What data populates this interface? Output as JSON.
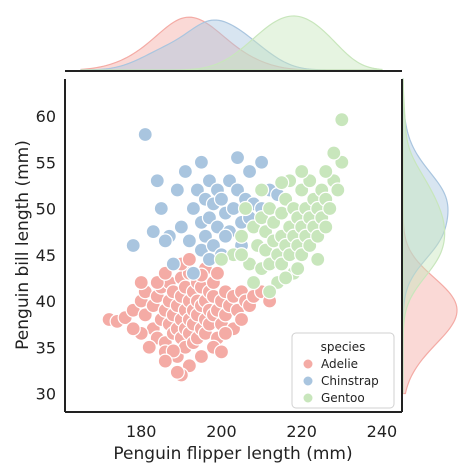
{
  "chart_data": {
    "type": "scatter",
    "xlabel": "Penguin flipper length (mm)",
    "ylabel": "Penguin bill length (mm)",
    "xlim": [
      161,
      245
    ],
    "ylim": [
      28,
      64
    ],
    "x_ticks": [
      180,
      200,
      220,
      240
    ],
    "y_ticks": [
      30,
      35,
      40,
      45,
      50,
      55,
      60
    ],
    "grid": false,
    "legend": {
      "title": "species",
      "placement": "bottom-right",
      "entries": [
        "Adelie",
        "Chinstrap",
        "Gentoo"
      ]
    },
    "marginals": {
      "top": "kde of flipper length by species",
      "right": "kde of bill length by species"
    },
    "series": [
      {
        "name": "Adelie",
        "color": "#f4aba5",
        "points": [
          [
            172,
            38
          ],
          [
            174,
            37.8
          ],
          [
            176,
            38.2
          ],
          [
            178,
            39
          ],
          [
            180,
            40
          ],
          [
            181,
            38.5
          ],
          [
            181,
            41
          ],
          [
            183,
            39.5
          ],
          [
            183,
            37
          ],
          [
            184,
            40.5
          ],
          [
            184,
            36
          ],
          [
            185,
            38
          ],
          [
            185,
            41.5
          ],
          [
            186,
            39
          ],
          [
            186,
            35.5
          ],
          [
            187,
            40
          ],
          [
            187,
            37.5
          ],
          [
            187,
            42
          ],
          [
            188,
            38.5
          ],
          [
            188,
            36.5
          ],
          [
            188,
            41
          ],
          [
            189,
            39.5
          ],
          [
            189,
            37
          ],
          [
            189,
            34
          ],
          [
            190,
            40.5
          ],
          [
            190,
            38
          ],
          [
            190,
            36
          ],
          [
            190,
            42.5
          ],
          [
            191,
            39
          ],
          [
            191,
            41.5
          ],
          [
            191,
            37
          ],
          [
            191,
            35
          ],
          [
            192,
            40
          ],
          [
            192,
            38
          ],
          [
            192,
            36.5
          ],
          [
            192,
            43
          ],
          [
            193,
            39
          ],
          [
            193,
            41
          ],
          [
            193,
            37.5
          ],
          [
            193,
            35.5
          ],
          [
            194,
            40
          ],
          [
            194,
            38.5
          ],
          [
            194,
            42
          ],
          [
            194,
            36
          ],
          [
            195,
            39.5
          ],
          [
            195,
            37
          ],
          [
            195,
            41.5
          ],
          [
            195,
            34
          ],
          [
            196,
            40
          ],
          [
            196,
            38
          ],
          [
            196,
            43.5
          ],
          [
            196,
            36.5
          ],
          [
            197,
            39
          ],
          [
            197,
            41
          ],
          [
            197,
            37.5
          ],
          [
            198,
            40.5
          ],
          [
            198,
            38.5
          ],
          [
            198,
            42
          ],
          [
            199,
            39
          ],
          [
            199,
            36
          ],
          [
            200,
            40
          ],
          [
            200,
            37.5
          ],
          [
            201,
            41
          ],
          [
            201,
            38.5
          ],
          [
            202,
            39.5
          ],
          [
            203,
            40.5
          ],
          [
            203,
            37
          ],
          [
            204,
            39
          ],
          [
            205,
            41
          ],
          [
            206,
            40
          ],
          [
            207,
            39.5
          ],
          [
            208,
            40.5
          ],
          [
            210,
            41
          ],
          [
            212,
            40
          ],
          [
            192,
            33
          ],
          [
            190,
            32
          ],
          [
            186,
            34.5
          ],
          [
            188,
            34.6
          ],
          [
            182,
            35
          ],
          [
            180,
            36.5
          ],
          [
            198,
            35
          ],
          [
            200,
            34.5
          ],
          [
            184,
            42
          ],
          [
            186,
            43
          ],
          [
            190,
            44
          ],
          [
            192,
            44.5
          ],
          [
            186,
            33.5
          ],
          [
            195,
            42.8
          ],
          [
            199,
            43
          ],
          [
            201,
            36.5
          ],
          [
            205,
            38
          ],
          [
            178,
            37
          ],
          [
            180,
            42
          ],
          [
            189,
            32.3
          ]
        ]
      },
      {
        "name": "Chinstrap",
        "color": "#a9c5df",
        "points": [
          [
            181,
            58
          ],
          [
            178,
            46
          ],
          [
            185,
            50
          ],
          [
            187,
            47
          ],
          [
            189,
            52
          ],
          [
            190,
            48
          ],
          [
            191,
            54
          ],
          [
            192,
            46.5
          ],
          [
            193,
            50
          ],
          [
            194,
            52
          ],
          [
            195,
            48.5
          ],
          [
            195,
            45.5
          ],
          [
            196,
            51
          ],
          [
            196,
            47
          ],
          [
            197,
            53
          ],
          [
            197,
            49
          ],
          [
            198,
            50.5
          ],
          [
            198,
            46
          ],
          [
            199,
            52
          ],
          [
            199,
            48
          ],
          [
            200,
            51
          ],
          [
            200,
            45
          ],
          [
            201,
            49.5
          ],
          [
            202,
            53
          ],
          [
            202,
            47.5
          ],
          [
            203,
            50
          ],
          [
            204,
            52
          ],
          [
            205,
            48.5
          ],
          [
            205,
            46
          ],
          [
            206,
            51
          ],
          [
            207,
            49
          ],
          [
            207,
            54
          ],
          [
            208,
            50.5
          ],
          [
            210,
            50
          ],
          [
            212,
            52
          ],
          [
            195,
            55
          ],
          [
            193,
            43
          ],
          [
            188,
            44
          ],
          [
            186,
            46.5
          ],
          [
            183,
            47.5
          ],
          [
            197,
            44.5
          ],
          [
            201,
            47
          ],
          [
            204,
            55.5
          ],
          [
            210,
            55
          ],
          [
            214,
            51.5
          ],
          [
            184,
            53
          ]
        ]
      },
      {
        "name": "Gentoo",
        "color": "#c8e6bc",
        "points": [
          [
            203,
            45
          ],
          [
            205,
            47
          ],
          [
            207,
            44
          ],
          [
            208,
            48
          ],
          [
            209,
            46
          ],
          [
            210,
            43.5
          ],
          [
            210,
            49
          ],
          [
            211,
            45.5
          ],
          [
            211,
            47.5
          ],
          [
            212,
            44
          ],
          [
            212,
            50
          ],
          [
            213,
            46.5
          ],
          [
            213,
            48.5
          ],
          [
            214,
            45
          ],
          [
            214,
            42
          ],
          [
            215,
            47
          ],
          [
            215,
            49.5
          ],
          [
            215,
            44
          ],
          [
            216,
            46
          ],
          [
            216,
            51
          ],
          [
            217,
            48
          ],
          [
            217,
            45
          ],
          [
            218,
            50
          ],
          [
            218,
            47
          ],
          [
            218,
            43
          ],
          [
            219,
            46
          ],
          [
            219,
            49
          ],
          [
            220,
            48
          ],
          [
            220,
            45
          ],
          [
            220,
            52
          ],
          [
            221,
            47
          ],
          [
            221,
            50
          ],
          [
            222,
            46
          ],
          [
            222,
            49
          ],
          [
            223,
            48
          ],
          [
            223,
            51
          ],
          [
            224,
            47
          ],
          [
            224,
            50
          ],
          [
            225,
            49
          ],
          [
            225,
            52
          ],
          [
            226,
            51
          ],
          [
            226,
            48
          ],
          [
            227,
            50
          ],
          [
            228,
            53
          ],
          [
            229,
            52
          ],
          [
            230,
            55
          ],
          [
            230,
            59.6
          ],
          [
            228,
            56
          ],
          [
            226,
            54
          ],
          [
            222,
            53
          ],
          [
            220,
            54
          ],
          [
            212,
            41
          ],
          [
            208,
            42
          ],
          [
            205,
            45
          ],
          [
            224,
            44.5
          ],
          [
            216,
            42.5
          ],
          [
            217,
            53
          ],
          [
            219,
            43.5
          ],
          [
            215,
            52.8
          ],
          [
            210,
            52
          ],
          [
            200,
            44.5
          ],
          [
            206,
            50
          ]
        ]
      }
    ]
  }
}
